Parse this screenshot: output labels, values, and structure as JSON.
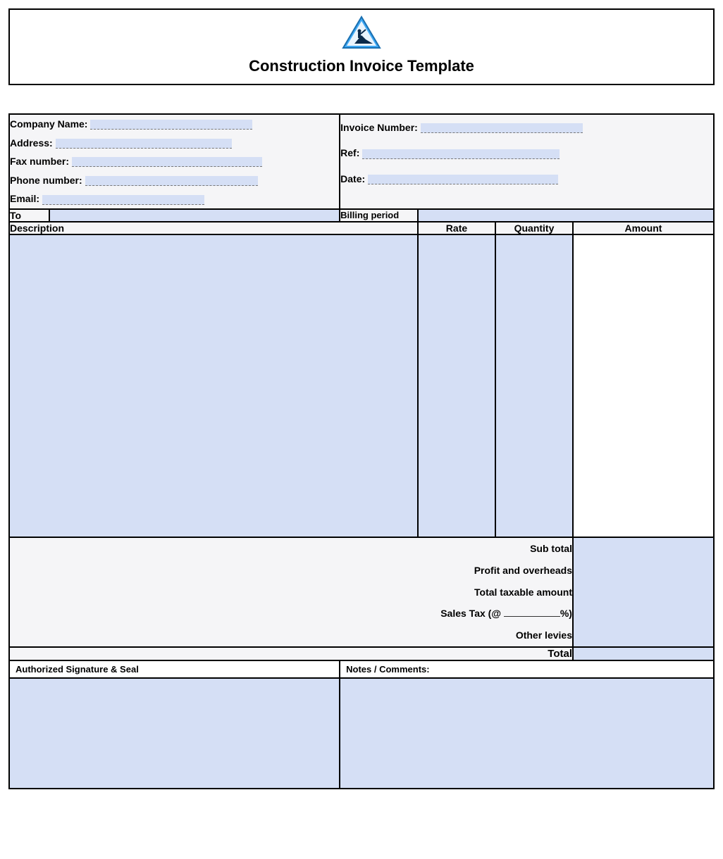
{
  "title": "Construction Invoice Template",
  "colors": {
    "fill_bg": "#d5dff5",
    "header_bg": "#f5f5f7",
    "border": "#000000",
    "logo_blue": "#3fa9f5",
    "logo_dark": "#0b2a4a"
  },
  "company_block": {
    "fields": [
      {
        "label": "Company Name:",
        "line_width": 230
      },
      {
        "label": "Address:",
        "line_width": 250
      },
      {
        "label": "Fax number:",
        "line_width": 270
      },
      {
        "label": "Phone number:",
        "line_width": 245
      },
      {
        "label": "Email:",
        "line_width": 230
      }
    ]
  },
  "invoice_block": {
    "fields": [
      {
        "label": "Invoice Number:",
        "line_width": 230
      },
      {
        "label": "Ref:",
        "line_width": 280
      },
      {
        "label": "Date:",
        "line_width": 270
      }
    ]
  },
  "row_labels": {
    "to": "To",
    "billing_period": "Billing period"
  },
  "columns": {
    "description": "Description",
    "rate": "Rate",
    "quantity": "Quantity",
    "amount": "Amount"
  },
  "summary": {
    "sub_total": "Sub total",
    "profit_overheads": "Profit and overheads",
    "taxable": "Total taxable amount",
    "sales_tax_prefix": "Sales Tax (@",
    "sales_tax_suffix": "%)",
    "other_levies": "Other levies",
    "total": "Total"
  },
  "footer": {
    "signature": "Authorized Signature & Seal",
    "notes": "Notes / Comments:"
  },
  "column_widths": {
    "description_pct": 58,
    "rate_pct": 11,
    "quantity_pct": 11,
    "amount_pct": 20
  }
}
